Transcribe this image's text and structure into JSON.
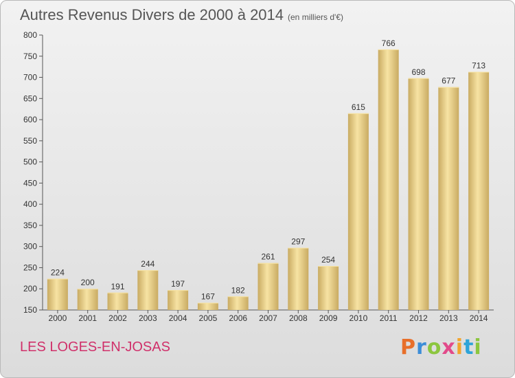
{
  "header": {
    "title": "Autres Revenus Divers de 2000 à 2014",
    "unit": "(en milliers d'€)"
  },
  "footer": {
    "location": "LES LOGES-EN-JOSAS",
    "logo_text": "Proxiti"
  },
  "colors": {
    "bar_light": "#f7e3a3",
    "bar_dark": "#c9ab62",
    "location_text": "#d0306a",
    "logo_letters": [
      "#e86f2a",
      "#3c8dd8",
      "#8cc63f",
      "#e24a8a",
      "#f2a52e",
      "#2ea4d8",
      "#8cc63f"
    ]
  },
  "chart_data": {
    "type": "bar",
    "categories": [
      "2000",
      "2001",
      "2002",
      "2003",
      "2004",
      "2005",
      "2006",
      "2007",
      "2008",
      "2009",
      "2010",
      "2011",
      "2012",
      "2013",
      "2014"
    ],
    "values": [
      224,
      200,
      191,
      244,
      197,
      167,
      182,
      261,
      297,
      254,
      615,
      766,
      698,
      677,
      713
    ],
    "title": "Autres Revenus Divers de 2000 à 2014",
    "ylim": [
      150,
      800
    ],
    "yticks": [
      150,
      200,
      250,
      300,
      350,
      400,
      450,
      500,
      550,
      600,
      650,
      700,
      750,
      800
    ],
    "grid": false,
    "legend": "none"
  }
}
